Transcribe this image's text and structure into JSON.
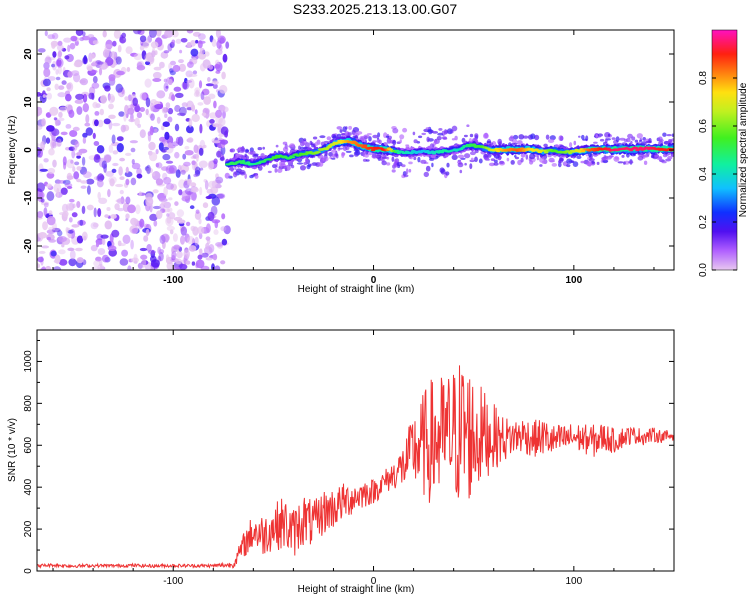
{
  "title": "S233.2025.213.13.00.G07",
  "chart_data": [
    {
      "type": "heatmap",
      "xlabel": "Height of straight line (km)",
      "ylabel": "Frequency (Hz)",
      "xlim": [
        -168,
        150
      ],
      "ylim": [
        -25,
        25
      ],
      "x_ticks": [
        -100,
        0,
        100
      ],
      "y_ticks": [
        -20,
        -10,
        0,
        10,
        20
      ],
      "colorbar": {
        "label": "Normalized spectral amplitude",
        "range": [
          0,
          1
        ],
        "ticks": [
          "0.0",
          "0.2",
          "0.4",
          "0.6",
          "0.8"
        ],
        "tick_values": [
          0.0,
          0.2,
          0.4,
          0.6,
          0.8
        ]
      },
      "noise_region_x": [
        -168,
        -73
      ],
      "signal_ridge": {
        "x": [
          -73,
          -66,
          -60,
          -54,
          -48,
          -42,
          -36,
          -30,
          -24,
          -18,
          -12,
          -6,
          0,
          6,
          12,
          18,
          24,
          30,
          36,
          42,
          48,
          54,
          60,
          66,
          72,
          78,
          84,
          90,
          96,
          102,
          108,
          114,
          120,
          126,
          132,
          138,
          144,
          150
        ],
        "y": [
          -2.8,
          -2.5,
          -2.9,
          -2.2,
          -1.3,
          -1.6,
          -0.8,
          -0.6,
          0.3,
          1.6,
          1.9,
          0.9,
          0.2,
          0.2,
          -0.4,
          -0.6,
          -0.2,
          -0.5,
          -0.3,
          0.2,
          1.0,
          0.6,
          -0.1,
          0.1,
          0.0,
          0.2,
          -0.3,
          -0.1,
          -0.5,
          -0.2,
          0.0,
          0.2,
          0.1,
          0.2,
          0.2,
          0.3,
          0.2,
          0.2
        ],
        "amplitude": [
          0.5,
          0.5,
          0.45,
          0.5,
          0.55,
          0.5,
          0.55,
          0.6,
          0.65,
          0.7,
          0.8,
          0.85,
          0.9,
          0.9,
          0.45,
          0.4,
          0.35,
          0.4,
          0.45,
          0.4,
          0.5,
          0.55,
          0.7,
          0.8,
          0.85,
          0.75,
          0.7,
          0.55,
          0.6,
          0.7,
          0.85,
          0.9,
          0.95,
          0.95,
          0.95,
          0.95,
          0.9,
          0.9
        ]
      }
    },
    {
      "type": "line",
      "xlabel": "Height of straight line (km)",
      "ylabel": "SNR (10 * v/v)",
      "xlim": [
        -168,
        150
      ],
      "ylim": [
        0,
        1150
      ],
      "x_ticks": [
        -100,
        0,
        100
      ],
      "y_ticks": [
        0,
        200,
        400,
        600,
        800,
        1000
      ],
      "color": "#ee3333",
      "series": [
        {
          "x": [
            -168,
            -160,
            -150,
            -140,
            -130,
            -120,
            -110,
            -100,
            -90,
            -80,
            -70,
            -65,
            -60,
            -55,
            -50,
            -45,
            -40,
            -35,
            -30,
            -25,
            -20,
            -15,
            -10,
            -5,
            0,
            5,
            10,
            15,
            20,
            25,
            30,
            35,
            40,
            45,
            50,
            55,
            60,
            65,
            70,
            75,
            80,
            85,
            90,
            95,
            100,
            105,
            110,
            115,
            120,
            125,
            130,
            135,
            140,
            145,
            150
          ],
          "y": [
            25,
            28,
            24,
            26,
            25,
            27,
            24,
            26,
            25,
            25,
            30,
            120,
            190,
            170,
            210,
            230,
            180,
            250,
            220,
            280,
            300,
            330,
            350,
            370,
            380,
            420,
            460,
            500,
            580,
            600,
            620,
            640,
            650,
            670,
            640,
            650,
            640,
            630,
            640,
            650,
            630,
            640,
            620,
            630,
            640,
            630,
            620,
            640,
            620,
            640,
            650,
            640,
            650,
            640,
            650
          ],
          "spread": [
            8,
            8,
            8,
            8,
            8,
            8,
            8,
            8,
            8,
            8,
            15,
            60,
            90,
            100,
            110,
            130,
            120,
            130,
            110,
            110,
            100,
            90,
            80,
            70,
            60,
            60,
            70,
            110,
            180,
            260,
            320,
            300,
            330,
            380,
            300,
            220,
            160,
            110,
            90,
            90,
            90,
            90,
            80,
            70,
            70,
            70,
            80,
            70,
            60,
            50,
            40,
            40,
            35,
            30,
            30
          ]
        }
      ]
    }
  ]
}
